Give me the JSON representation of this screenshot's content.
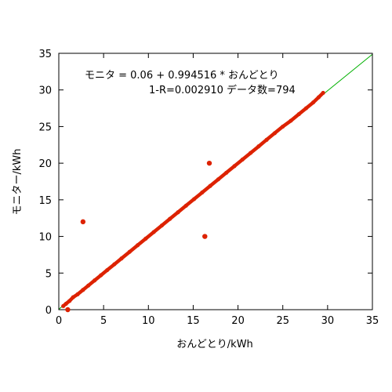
{
  "chart_data": {
    "type": "scatter",
    "xlabel": "おんどとり/kWh",
    "ylabel": "モニター/kWh",
    "xlim": [
      0,
      35
    ],
    "ylim": [
      0,
      35
    ],
    "xticks": [
      0,
      5,
      10,
      15,
      20,
      25,
      30,
      35
    ],
    "yticks": [
      0,
      5,
      10,
      15,
      20,
      25,
      30,
      35
    ],
    "annotations": [
      "モニタ = 0.06 + 0.994516 * おんどとり",
      "1-R=0.002910 データ数=794"
    ],
    "fit": {
      "intercept": 0.06,
      "slope": 0.994516,
      "x_range": [
        0,
        35
      ],
      "color": "#00b000"
    },
    "series": [
      {
        "color": "#dd2200",
        "x": [
          0.5,
          0.8,
          1.2,
          1.6,
          2.1,
          2.7,
          3.3,
          4.0,
          4.7,
          5.4,
          6.2,
          7.0,
          7.9,
          8.8,
          9.7,
          10.6,
          11.5,
          12.4,
          13.3,
          14.2,
          15.1,
          16.0,
          16.9,
          17.8,
          18.7,
          19.6,
          20.5,
          21.4,
          22.3,
          23.2,
          24.1,
          25.0,
          25.9,
          26.8,
          27.6,
          28.4,
          29.0,
          29.5
        ],
        "y": [
          0.5,
          0.8,
          1.2,
          1.7,
          2.1,
          2.7,
          3.3,
          4.0,
          4.7,
          5.4,
          6.2,
          7.0,
          7.9,
          8.8,
          9.7,
          10.6,
          11.5,
          12.4,
          13.3,
          14.2,
          15.1,
          16.0,
          16.9,
          17.8,
          18.7,
          19.6,
          20.5,
          21.4,
          22.3,
          23.2,
          24.1,
          25.0,
          25.8,
          26.7,
          27.5,
          28.3,
          29.0,
          29.6
        ]
      },
      {
        "color": "#dd2200",
        "x": [
          2.7,
          16.3,
          16.8,
          1.0
        ],
        "y": [
          12.0,
          10.0,
          20.0,
          0.0
        ]
      }
    ]
  }
}
